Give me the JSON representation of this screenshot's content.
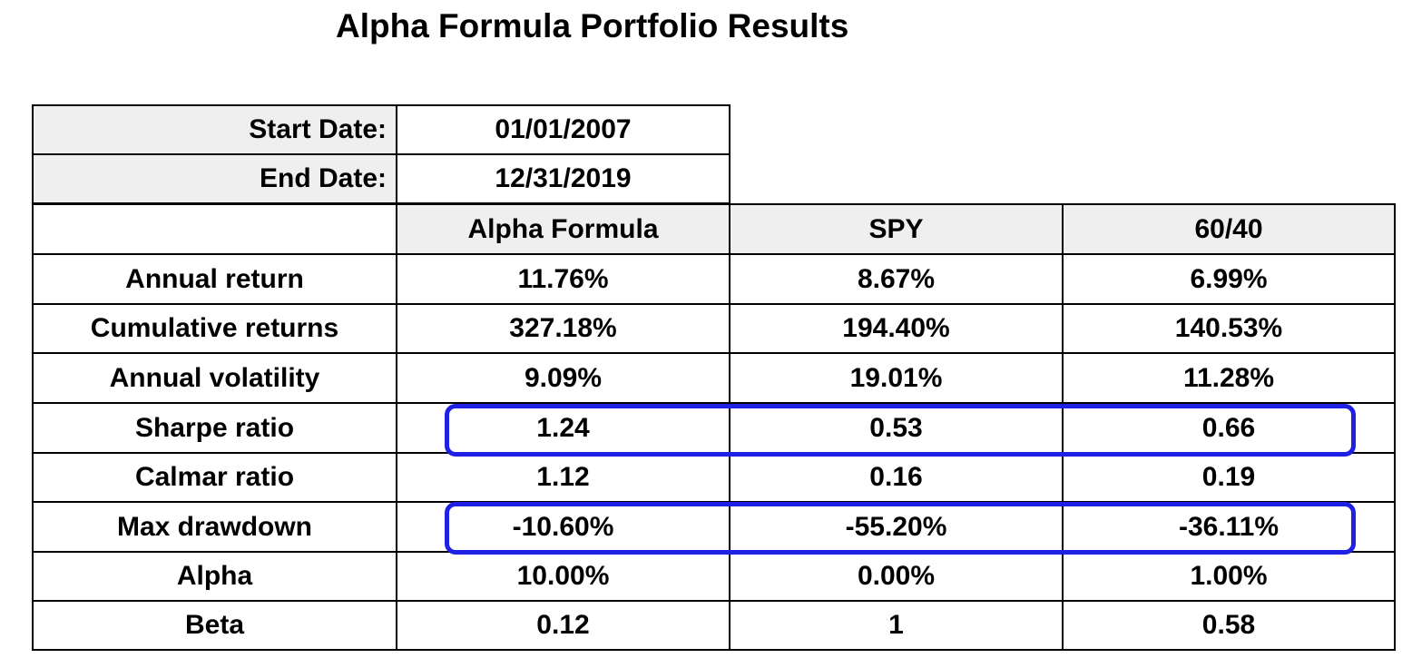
{
  "title": "Alpha Formula Portfolio Results",
  "period": [
    {
      "label": "Start Date:",
      "value": "01/01/2007"
    },
    {
      "label": "End Date:",
      "value": "12/31/2019"
    }
  ],
  "table": {
    "headers": [
      "",
      "Alpha Formula",
      "SPY",
      "60/40"
    ],
    "rows": [
      {
        "metric": "Annual return",
        "values": [
          "11.76%",
          "8.67%",
          "6.99%"
        ]
      },
      {
        "metric": "Cumulative returns",
        "values": [
          "327.18%",
          "194.40%",
          "140.53%"
        ]
      },
      {
        "metric": "Annual volatility",
        "values": [
          "9.09%",
          "19.01%",
          "11.28%"
        ]
      },
      {
        "metric": "Sharpe ratio",
        "values": [
          "1.24",
          "0.53",
          "0.66"
        ]
      },
      {
        "metric": "Calmar ratio",
        "values": [
          "1.12",
          "0.16",
          "0.19"
        ]
      },
      {
        "metric": "Max drawdown",
        "values": [
          "-10.60%",
          "-55.20%",
          "-36.11%"
        ]
      },
      {
        "metric": "Alpha",
        "values": [
          "10.00%",
          "0.00%",
          "1.00%"
        ]
      },
      {
        "metric": "Beta",
        "values": [
          "0.12",
          "1",
          "0.58"
        ]
      }
    ]
  },
  "highlight_color": "#1f20e6",
  "highlighted_rows": [
    "Sharpe ratio",
    "Max drawdown"
  ]
}
